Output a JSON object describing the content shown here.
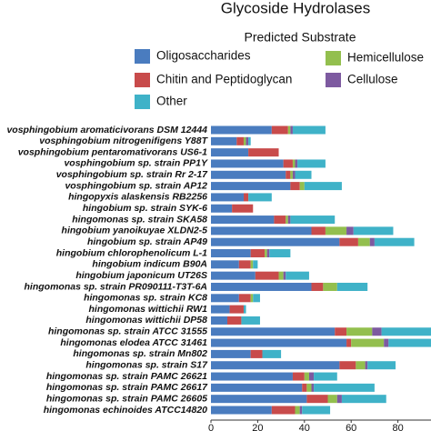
{
  "chart_data": {
    "type": "stacked-barh",
    "title": "Glycoside Hydrolases",
    "subtitle": "Predicted Substrate",
    "categories": [
      "vosphingobium aromaticivorans DSM 12444",
      "vosphingobium nitrogenifigens Y88T",
      "vosphingobium pentaromativorans US6-1",
      "vosphingobium sp. strain PP1Y",
      "vosphingobium sp. strain Rr 2-17",
      "vosphingobium sp. strain AP12",
      "hingopyxis alaskensis RB2256",
      "hingobium sp. strain SYK-6",
      "hingomonas sp. strain SKA58",
      "hingobium yanoikuyae XLDN2-5",
      "hingobium sp. strain AP49",
      "hingobium chlorophenolicum L-1",
      "hingobium indicum B90A",
      "hingobium japonicum UT26S",
      "hingomonas sp. strain PR090111-T3T-6A",
      "hingomonas sp. strain KC8",
      "hingomonas wittichii RW1",
      "hingomonas wittichii DP58",
      "hingomonas sp. strain ATCC 31555",
      "hingomonas elodea ATCC 31461",
      "hingomonas sp. strain Mn802",
      "hingomonas sp. strain S17",
      "hingomonas sp. strain PAMC 26621",
      "hingomonas sp. strain PAMC 26617",
      "hingomonas sp. strain PAMC 26605",
      "hingomonas echinoides ATCC14820"
    ],
    "series": [
      {
        "name": "Oligosaccharides",
        "color": "#4a7cbf",
        "values": [
          26,
          11,
          16,
          31,
          32,
          34,
          14,
          9,
          27,
          43,
          55,
          17,
          12,
          19,
          43,
          12,
          8,
          7,
          53,
          58,
          17,
          55,
          35,
          39,
          41,
          26
        ]
      },
      {
        "name": "Chitin and Peptidoglycan",
        "color": "#c84b4b",
        "values": [
          7,
          3,
          13,
          4,
          2,
          4,
          2,
          9,
          5,
          6,
          8,
          6,
          5,
          10,
          5,
          5,
          6,
          6,
          5,
          2,
          5,
          7,
          5,
          2,
          9,
          10
        ]
      },
      {
        "name": "Hemicellulose",
        "color": "#93bf4e",
        "values": [
          1,
          1,
          0,
          1,
          1,
          2,
          0,
          0,
          1,
          9,
          5,
          1,
          1,
          2,
          6,
          1,
          0,
          0,
          11,
          14,
          0,
          4,
          2,
          2,
          4,
          2
        ]
      },
      {
        "name": "Cellulose",
        "color": "#7d5aa0",
        "values": [
          1,
          1,
          0,
          1,
          1,
          0,
          0,
          0,
          1,
          3,
          2,
          1,
          0,
          1,
          0,
          0,
          0,
          0,
          4,
          2,
          0,
          1,
          2,
          1,
          2,
          1
        ]
      },
      {
        "name": "Other",
        "color": "#3fb2c8",
        "values": [
          14,
          1,
          0,
          12,
          7,
          16,
          10,
          0,
          19,
          17,
          17,
          9,
          2,
          10,
          13,
          3,
          1,
          8,
          25,
          20,
          8,
          12,
          10,
          26,
          19,
          12
        ]
      }
    ],
    "xlim": [
      0,
      94
    ],
    "xticks": [
      0,
      20,
      40,
      60,
      80
    ]
  }
}
